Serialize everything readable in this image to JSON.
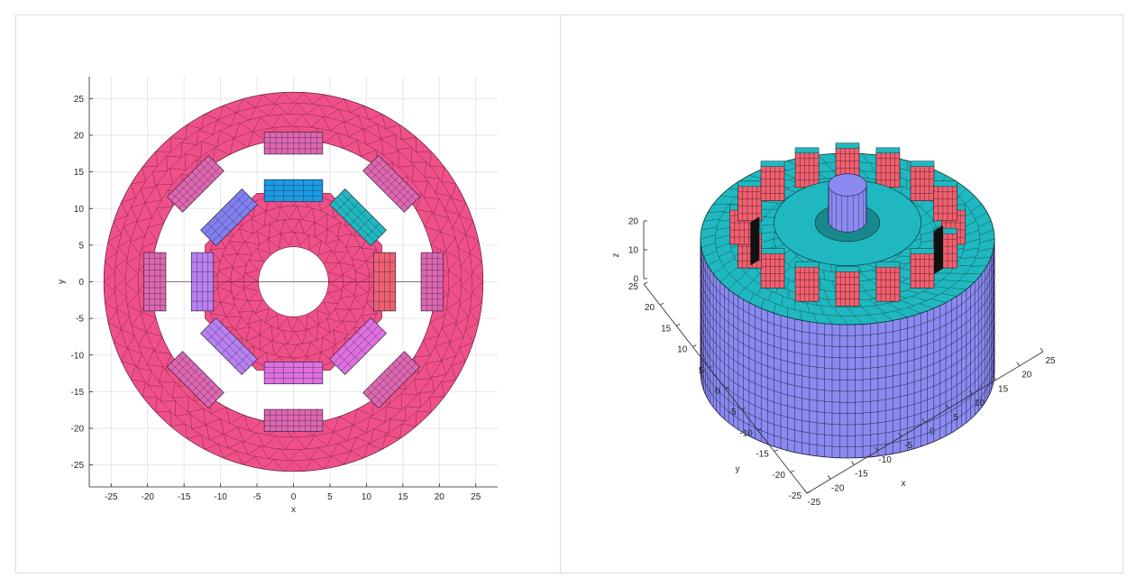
{
  "left_plot": {
    "xlabel": "x",
    "ylabel": "y",
    "xlim": [
      -28,
      28
    ],
    "ylim": [
      -28,
      28
    ],
    "xticks": [
      -25,
      -20,
      -15,
      -10,
      -5,
      0,
      5,
      10,
      15,
      20,
      25
    ],
    "yticks": [
      -25,
      -20,
      -15,
      -10,
      -5,
      0,
      5,
      10,
      15,
      20,
      25
    ],
    "grid": true,
    "regions": {
      "stator_outer_radius": 26,
      "stator_inner_radius": 19.5,
      "rotor_outer_radius": 12.5,
      "shaft_radius": 4.8
    },
    "colors": {
      "stator": "#f0508a",
      "rotor": "#f0508a",
      "magnet_blue": "#1a9be6",
      "magnet_cyan": "#20b8c0",
      "magnet_violet": "#8080f0",
      "magnet_lilac": "#b880f0",
      "magnet_red": "#f06070",
      "magnet_pink": "#e070e0",
      "coil": "#e066b0"
    }
  },
  "right_plot": {
    "xlabel": "x",
    "ylabel": "y",
    "zlabel": "z",
    "xticks": [
      -25,
      -20,
      -15,
      -10,
      -5,
      0,
      5,
      10,
      15,
      20,
      25
    ],
    "yticks": [
      -25,
      -20,
      -15,
      -10,
      -5,
      0,
      5,
      10,
      15,
      20,
      25
    ],
    "zticks": [
      0,
      10,
      20
    ],
    "colors": {
      "top_face": "#20b8c0",
      "side_face": "#8a8af0",
      "windings": "#f06070",
      "shaft": "#8a8af0"
    }
  }
}
